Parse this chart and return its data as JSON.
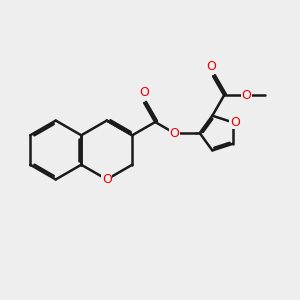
{
  "background_color": "#eeeeee",
  "bond_color": "#1a1a1a",
  "oxygen_color": "#ee0000",
  "line_width": 1.8,
  "figsize": [
    3.0,
    3.0
  ],
  "dpi": 100,
  "xlim": [
    0,
    10
  ],
  "ylim": [
    0,
    10
  ]
}
